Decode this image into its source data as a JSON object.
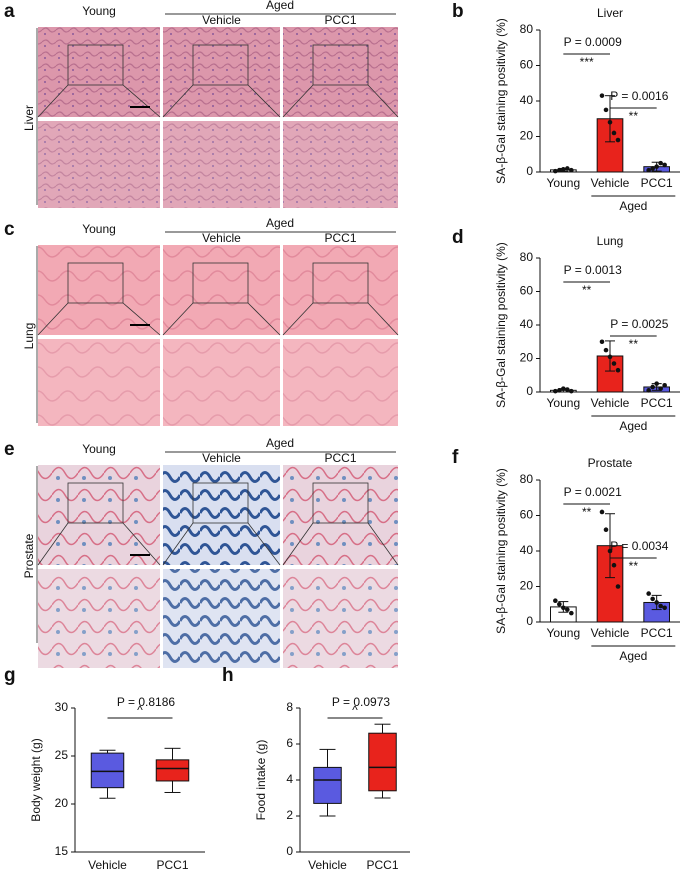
{
  "micrographs": [
    {
      "letter": "a",
      "tissue": "Liver",
      "group": "Aged",
      "columns": [
        "Young",
        "Vehicle",
        "PCC1"
      ]
    },
    {
      "letter": "c",
      "tissue": "Lung",
      "group": "Aged",
      "columns": [
        "Young",
        "Vehicle",
        "PCC1"
      ]
    },
    {
      "letter": "e",
      "tissue": "Prostate",
      "group": "Aged",
      "columns": [
        "Young",
        "Vehicle",
        "PCC1"
      ]
    }
  ],
  "chart_data": [
    {
      "type": "bar",
      "panel": "b",
      "title": "Liver",
      "y_label": "SA-β-Gal staining positivity (%)",
      "categories": [
        "Young",
        "Vehicle",
        "PCC1"
      ],
      "group_label": "Aged",
      "colors": [
        "#ffffff",
        "#e8231c",
        "#5a5ae0"
      ],
      "values": [
        1.2,
        30,
        3
      ],
      "errors": [
        0.8,
        13,
        2.5
      ],
      "points": [
        [
          0.5,
          1,
          1.5,
          2,
          1
        ],
        [
          43,
          35,
          28,
          22,
          18
        ],
        [
          1,
          2,
          3,
          5,
          4
        ]
      ],
      "ylim": [
        0,
        80
      ],
      "yticks": [
        0,
        20,
        40,
        60,
        80
      ],
      "comparisons": [
        {
          "from": 0,
          "to": 1,
          "p": "P = 0.0009",
          "stars": "***"
        },
        {
          "from": 1,
          "to": 2,
          "p": "P = 0.0016",
          "stars": "**"
        }
      ]
    },
    {
      "type": "bar",
      "panel": "d",
      "title": "Lung",
      "y_label": "SA-β-Gal staining positivity (%)",
      "categories": [
        "Young",
        "Vehicle",
        "PCC1"
      ],
      "group_label": "Aged",
      "colors": [
        "#ffffff",
        "#e8231c",
        "#5a5ae0"
      ],
      "values": [
        1,
        21.5,
        3
      ],
      "errors": [
        1,
        9,
        2
      ],
      "points": [
        [
          0.5,
          1,
          2,
          1.5,
          0.5
        ],
        [
          30,
          25,
          21,
          17,
          13
        ],
        [
          1,
          3,
          5,
          2,
          4
        ]
      ],
      "ylim": [
        0,
        80
      ],
      "yticks": [
        0,
        20,
        40,
        60,
        80
      ],
      "comparisons": [
        {
          "from": 0,
          "to": 1,
          "p": "P = 0.0013",
          "stars": "**"
        },
        {
          "from": 1,
          "to": 2,
          "p": "P = 0.0025",
          "stars": "**"
        }
      ]
    },
    {
      "type": "bar",
      "panel": "f",
      "title": "Prostate",
      "y_label": "SA-β-Gal staining positivity (%)",
      "categories": [
        "Young",
        "Vehicle",
        "PCC1"
      ],
      "group_label": "Aged",
      "colors": [
        "#ffffff",
        "#e8231c",
        "#5a5ae0"
      ],
      "values": [
        8.5,
        43,
        11
      ],
      "errors": [
        3,
        18,
        4
      ],
      "points": [
        [
          12,
          10,
          8,
          7,
          5
        ],
        [
          62,
          52,
          40,
          32,
          20
        ],
        [
          16,
          13,
          11,
          9,
          8
        ]
      ],
      "ylim": [
        0,
        80
      ],
      "yticks": [
        0,
        20,
        40,
        60,
        80
      ],
      "comparisons": [
        {
          "from": 0,
          "to": 1,
          "p": "P = 0.0021",
          "stars": "**"
        },
        {
          "from": 1,
          "to": 2,
          "p": "P = 0.0034",
          "stars": "**"
        }
      ]
    },
    {
      "type": "box",
      "panel": "g",
      "y_label": "Body weight (g)",
      "categories": [
        "Vehicle",
        "PCC1"
      ],
      "colors": [
        "#5a5ae0",
        "#e8231c"
      ],
      "min": [
        20.6,
        21.2
      ],
      "q1": [
        21.7,
        22.4
      ],
      "median": [
        23.4,
        23.7
      ],
      "q3": [
        25.3,
        24.6
      ],
      "max": [
        25.6,
        25.8
      ],
      "ylim": [
        15,
        30
      ],
      "yticks": [
        15,
        20,
        25,
        30
      ],
      "comparison": {
        "p": "P = 0.8186",
        "mark": "^"
      }
    },
    {
      "type": "box",
      "panel": "h",
      "y_label": "Food intake (g)",
      "categories": [
        "Vehicle",
        "PCC1"
      ],
      "colors": [
        "#5a5ae0",
        "#e8231c"
      ],
      "min": [
        2,
        3
      ],
      "q1": [
        2.7,
        3.4
      ],
      "median": [
        4,
        4.7
      ],
      "q3": [
        4.7,
        6.6
      ],
      "max": [
        5.7,
        7.1
      ],
      "ylim": [
        0,
        8
      ],
      "yticks": [
        0,
        2,
        4,
        6,
        8
      ],
      "comparison": {
        "p": "P = 0.0973",
        "mark": "^"
      }
    }
  ]
}
